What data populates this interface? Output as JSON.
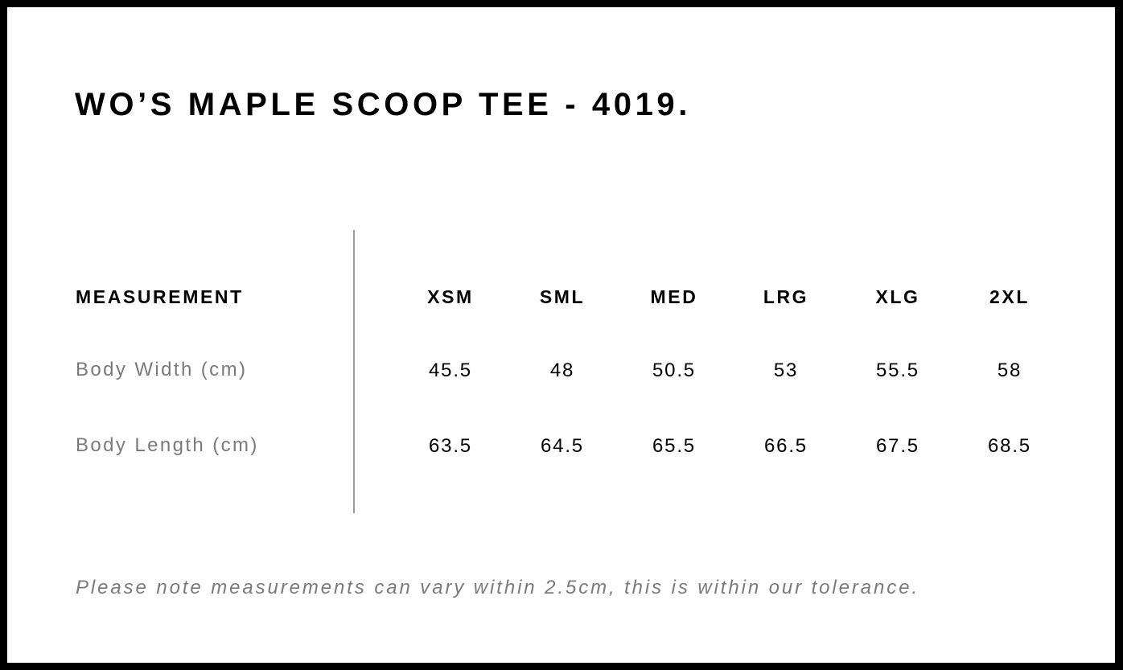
{
  "title": "WO’S MAPLE SCOOP TEE - 4019.",
  "table": {
    "label_header": "MEASUREMENT",
    "sizes": [
      "XSM",
      "SML",
      "MED",
      "LRG",
      "XLG",
      "2XL"
    ],
    "rows": [
      {
        "label": "Body Width (cm)",
        "values": [
          "45.5",
          "48",
          "50.5",
          "53",
          "55.5",
          "58"
        ]
      },
      {
        "label": "Body Length (cm)",
        "values": [
          "63.5",
          "64.5",
          "65.5",
          "66.5",
          "67.5",
          "68.5"
        ]
      }
    ]
  },
  "note": "Please note measurements can vary within 2.5cm, this is within our tolerance."
}
